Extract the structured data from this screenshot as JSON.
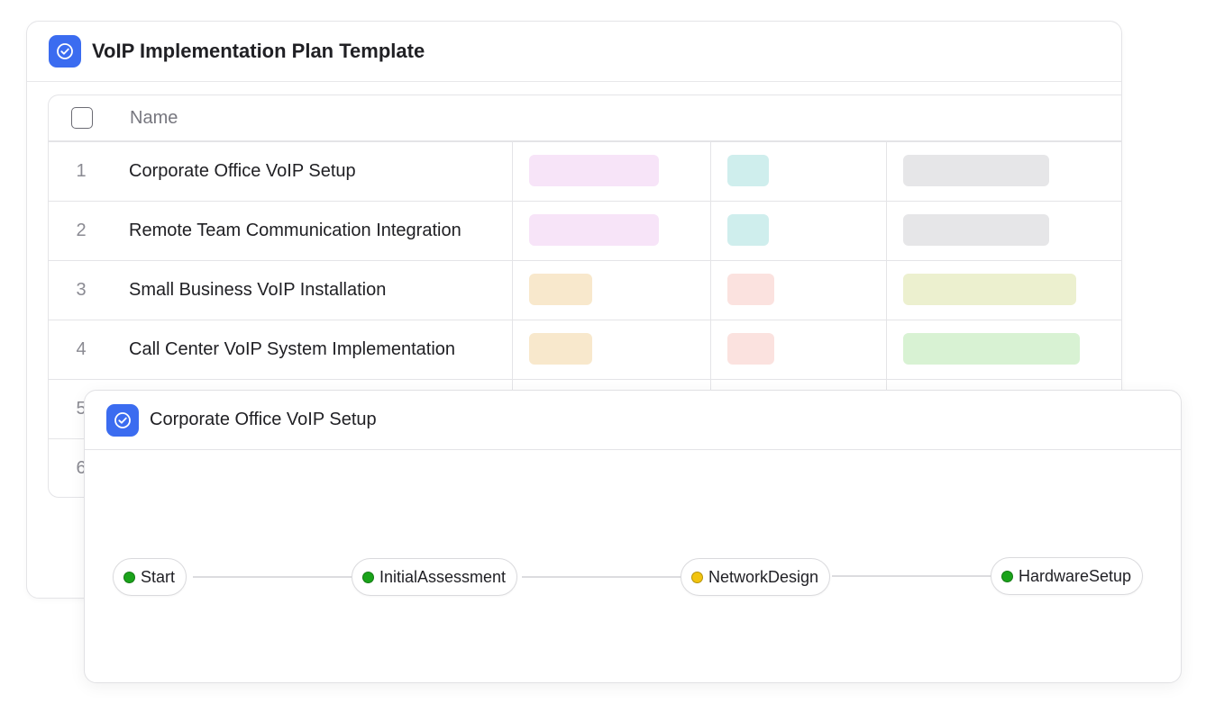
{
  "main_card": {
    "title": "VoIP Implementation Plan Template",
    "icon": "check-circle-icon",
    "accent": "#3b6cf0"
  },
  "table": {
    "header": {
      "name_label": "Name"
    },
    "rows": [
      {
        "num": "1",
        "name": "Corporate Office VoIP Setup",
        "tags": [
          "#f7e4f8",
          "#cfeeed",
          "#e6e6e8"
        ]
      },
      {
        "num": "2",
        "name": "Remote Team Communication Integration",
        "tags": [
          "#f7e4f8",
          "#cfeeed",
          "#e6e6e8"
        ]
      },
      {
        "num": "3",
        "name": "Small Business VoIP Installation",
        "tags": [
          "#f8e8cc",
          "#fbe2df",
          "#ecf0cf"
        ]
      },
      {
        "num": "4",
        "name": "Call Center VoIP System Implementation",
        "tags": [
          "#f8e8cc",
          "#fbe2df",
          "#d8f2d3"
        ]
      },
      {
        "num": "5",
        "name": ""
      },
      {
        "num": "6",
        "name": ""
      }
    ]
  },
  "detail_card": {
    "title": "Corporate Office VoIP Setup",
    "icon": "check-circle-icon",
    "flow": {
      "nodes": [
        {
          "label": "Start",
          "status_color": "#1aa31a"
        },
        {
          "label": "InitialAssessment",
          "status_color": "#1aa31a"
        },
        {
          "label": "NetworkDesign",
          "status_color": "#f2c40f"
        },
        {
          "label": "HardwareSetup",
          "status_color": "#1aa31a"
        }
      ]
    }
  }
}
